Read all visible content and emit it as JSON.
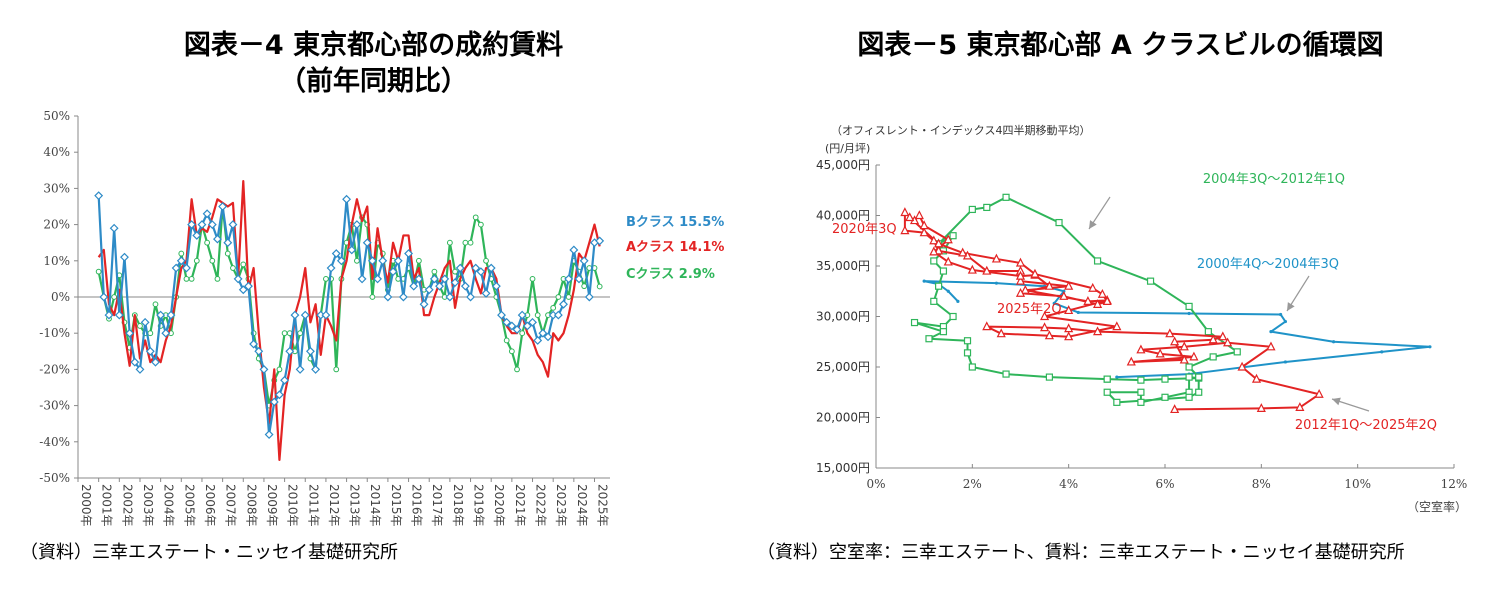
{
  "left": {
    "title1": "図表－4 東京都心部の成約賃料",
    "title2": "（前年同期比）",
    "source": "（資料）三幸エステート・ニッセイ基礎研究所",
    "end_labels": [
      {
        "text": "Bクラス 15.5%",
        "color": "#2e8bc7"
      },
      {
        "text": "Aクラス 14.1%",
        "color": "#e32424"
      },
      {
        "text": "Cクラス 2.9%",
        "color": "#2fb55a"
      }
    ]
  },
  "right": {
    "title": "図表－5 東京都心部 A クラスビルの循環図",
    "subtitle": "（オフィスレント・インデックス4四半期移動平均）",
    "unit": "(円/月坪)",
    "xlabel": "（空室率）",
    "source": "（資料）空室率：三幸エステート、賃料：三幸エステート・ニッセイ基礎研究所",
    "annotations": [
      {
        "text": "2004年3Q～2012年1Q",
        "color": "#2fb55a"
      },
      {
        "text": "2000年4Q～2004年3Q",
        "color": "#1f93c8"
      },
      {
        "text": "2012年1Q～2025年2Q",
        "color": "#e32424"
      },
      {
        "text": "2020年3Q",
        "color": "#e32424"
      },
      {
        "text": "2025年2Q",
        "color": "#e32424"
      }
    ]
  },
  "chart_data": [
    {
      "type": "line",
      "title": "図表－4 東京都心部の成約賃料（前年同期比）",
      "ylim": [
        -50,
        50
      ],
      "yticks": [
        "50%",
        "40%",
        "30%",
        "20%",
        "10%",
        "0%",
        "-10%",
        "-20%",
        "-30%",
        "-40%",
        "-50%"
      ],
      "xticks": [
        "2000年",
        "2001年",
        "2002年",
        "2003年",
        "2004年",
        "2005年",
        "2006年",
        "2007年",
        "2008年",
        "2009年",
        "2010年",
        "2011年",
        "2012年",
        "2013年",
        "2014年",
        "2015年",
        "2016年",
        "2017年",
        "2018年",
        "2019年",
        "2020年",
        "2021年",
        "2022年",
        "2023年",
        "2024年",
        "2025年"
      ],
      "x_start": 2001.0,
      "x_step": 0.25,
      "series": [
        {
          "name": "Aクラス",
          "color": "#e32424",
          "end_value": 14.1,
          "values": [
            11,
            13,
            -2,
            -5,
            2,
            -10,
            -19,
            -5,
            -17,
            -12,
            -18,
            -16,
            -18,
            -12,
            -8,
            0,
            8,
            10,
            27,
            17,
            19,
            18,
            22,
            27,
            26,
            25,
            26,
            5,
            32,
            2,
            8,
            -10,
            -25,
            -35,
            -20,
            -45,
            -27,
            -20,
            -5,
            0,
            8,
            -7,
            -2,
            -16,
            -5,
            -8,
            -12,
            5,
            10,
            20,
            27,
            21,
            25,
            5,
            19,
            10,
            4,
            15,
            10,
            17,
            17,
            5,
            8,
            -5,
            -5,
            0,
            4,
            8,
            10,
            -3,
            5,
            8,
            10,
            5,
            1,
            8,
            8,
            5,
            -5,
            -8,
            -10,
            -10,
            -5,
            -10,
            -12,
            -16,
            -18,
            -22,
            -10,
            -12,
            -10,
            -5,
            2,
            12,
            10,
            15,
            20,
            14
          ]
        },
        {
          "name": "Bクラス",
          "color": "#2e8bc7",
          "end_value": 15.5,
          "values": [
            28,
            0,
            -5,
            19,
            -5,
            11,
            -10,
            -18,
            -20,
            -7,
            -15,
            -18,
            -5,
            -10,
            -5,
            8,
            10,
            8,
            20,
            17,
            20,
            23,
            20,
            16,
            25,
            15,
            20,
            5,
            2,
            3,
            -13,
            -15,
            -20,
            -38,
            -29,
            -27,
            -23,
            -15,
            -5,
            -20,
            -5,
            -15,
            -20,
            -5,
            -5,
            8,
            12,
            10,
            27,
            13,
            20,
            5,
            15,
            10,
            5,
            10,
            0,
            7,
            10,
            0,
            12,
            3,
            5,
            -2,
            2,
            5,
            3,
            5,
            0,
            4,
            8,
            3,
            0,
            8,
            7,
            1,
            8,
            3,
            -5,
            -7,
            -8,
            -9,
            -5,
            -8,
            -7,
            -12,
            -10,
            -11,
            -5,
            -5,
            -2,
            5,
            13,
            5,
            10,
            0,
            15,
            15.5
          ]
        },
        {
          "name": "Cクラス",
          "color": "#2fb55a",
          "end_value": 2.9,
          "values": [
            7,
            0,
            -6,
            0,
            6,
            -7,
            -14,
            -5,
            -8,
            -10,
            -10,
            -2,
            -8,
            -5,
            -10,
            0,
            12,
            5,
            5,
            10,
            20,
            15,
            10,
            5,
            25,
            12,
            8,
            5,
            9,
            5,
            -10,
            -17,
            -20,
            -30,
            -23,
            -20,
            -10,
            -10,
            -15,
            -10,
            -5,
            -17,
            -20,
            -5,
            5,
            5,
            -20,
            5,
            15,
            20,
            10,
            22,
            20,
            0,
            15,
            12,
            2,
            10,
            5,
            5,
            8,
            3,
            10,
            2,
            2,
            7,
            3,
            0,
            15,
            7,
            5,
            15,
            15,
            22,
            20,
            10,
            5,
            0,
            -5,
            -12,
            -15,
            -20,
            -10,
            -5,
            5,
            -5,
            -10,
            -5,
            -3,
            0,
            5,
            0,
            10,
            7,
            3,
            8,
            8,
            2.9
          ]
        }
      ]
    },
    {
      "type": "line",
      "title": "図表－5 東京都心部 A クラスビルの循環図",
      "xlabel": "（空室率）",
      "ylabel": "(円/月坪)",
      "xlim": [
        0,
        12
      ],
      "ylim": [
        15000,
        45000
      ],
      "xticks": [
        "0%",
        "2%",
        "4%",
        "6%",
        "8%",
        "10%",
        "12%"
      ],
      "yticks": [
        "15,000円",
        "20,000円",
        "25,000円",
        "30,000円",
        "35,000円",
        "40,000円",
        "45,000円"
      ],
      "series": [
        {
          "name": "2000年4Q～2004年3Q",
          "color": "#1f93c8",
          "marker": "dot",
          "points": [
            [
              1.7,
              31.5
            ],
            [
              1.5,
              32.5
            ],
            [
              1.3,
              33.2
            ],
            [
              1.0,
              33.5
            ],
            [
              2.5,
              33.3
            ],
            [
              3.5,
              33.0
            ],
            [
              3.9,
              32.5
            ],
            [
              3.7,
              31.3
            ],
            [
              4.2,
              30.4
            ],
            [
              6.5,
              30.3
            ],
            [
              8.4,
              30.2
            ],
            [
              8.5,
              29.5
            ],
            [
              8.2,
              28.5
            ],
            [
              9.5,
              27.5
            ],
            [
              11.5,
              27.0
            ],
            [
              10.5,
              26.5
            ],
            [
              8.5,
              25.5
            ],
            [
              6.5,
              24.3
            ],
            [
              5.0,
              24.0
            ]
          ]
        },
        {
          "name": "2004年3Q～2012年1Q",
          "color": "#2fb55a",
          "marker": "square",
          "points": [
            [
              4.8,
              23.8
            ],
            [
              5.5,
              23.7
            ],
            [
              6.0,
              23.8
            ],
            [
              6.7,
              23.9
            ],
            [
              6.5,
              24.0
            ],
            [
              6.5,
              22.5
            ],
            [
              6.0,
              22.0
            ],
            [
              5.5,
              21.5
            ],
            [
              5.5,
              22.5
            ],
            [
              4.8,
              22.5
            ],
            [
              5.0,
              21.5
            ],
            [
              6.5,
              22.0
            ],
            [
              6.7,
              22.5
            ],
            [
              6.7,
              24.0
            ],
            [
              6.5,
              25.0
            ],
            [
              7.0,
              26.0
            ],
            [
              7.5,
              26.5
            ],
            [
              6.9,
              28.5
            ],
            [
              6.5,
              31.0
            ],
            [
              5.7,
              33.5
            ],
            [
              4.6,
              35.5
            ],
            [
              3.8,
              39.3
            ],
            [
              2.7,
              41.8
            ],
            [
              2.3,
              40.8
            ],
            [
              2.0,
              40.6
            ],
            [
              1.3,
              37.2
            ],
            [
              1.6,
              38.0
            ],
            [
              1.4,
              36.5
            ],
            [
              1.2,
              35.5
            ],
            [
              1.4,
              34.5
            ],
            [
              1.3,
              33.0
            ],
            [
              1.2,
              31.5
            ],
            [
              1.6,
              30.0
            ],
            [
              1.4,
              29.0
            ],
            [
              0.8,
              29.4
            ],
            [
              1.4,
              28.5
            ],
            [
              1.1,
              27.8
            ],
            [
              1.9,
              27.6
            ],
            [
              1.9,
              26.4
            ],
            [
              2.0,
              25.0
            ],
            [
              2.7,
              24.3
            ],
            [
              3.6,
              24.0
            ],
            [
              4.8,
              23.8
            ]
          ]
        },
        {
          "name": "2012年1Q～2025年2Q",
          "color": "#e32424",
          "marker": "triangle",
          "points": [
            [
              6.2,
              20.8
            ],
            [
              8.0,
              20.9
            ],
            [
              8.8,
              21.0
            ],
            [
              9.2,
              22.3
            ],
            [
              7.9,
              23.8
            ],
            [
              7.6,
              25.0
            ],
            [
              8.2,
              27.0
            ],
            [
              7.3,
              27.4
            ],
            [
              6.4,
              27.0
            ],
            [
              5.5,
              26.7
            ],
            [
              5.9,
              26.3
            ],
            [
              6.6,
              26.0
            ],
            [
              5.3,
              25.5
            ],
            [
              6.4,
              25.7
            ],
            [
              6.2,
              27.5
            ],
            [
              7.0,
              27.7
            ],
            [
              7.2,
              28.0
            ],
            [
              6.1,
              28.3
            ],
            [
              4.6,
              28.5
            ],
            [
              4.0,
              28.8
            ],
            [
              3.5,
              28.9
            ],
            [
              2.3,
              29.0
            ],
            [
              2.6,
              28.3
            ],
            [
              3.6,
              28.1
            ],
            [
              4.0,
              28.0
            ],
            [
              5.0,
              29.0
            ],
            [
              3.5,
              30.0
            ],
            [
              4.0,
              30.6
            ],
            [
              4.8,
              31.6
            ],
            [
              4.4,
              31.5
            ],
            [
              3.1,
              32.6
            ],
            [
              4.0,
              33.0
            ],
            [
              3.0,
              33.5
            ],
            [
              3.0,
              34.5
            ],
            [
              2.3,
              34.5
            ],
            [
              1.9,
              36.0
            ],
            [
              1.3,
              36.5
            ],
            [
              1.2,
              37.5
            ],
            [
              1.0,
              38.3
            ],
            [
              0.6,
              38.5
            ],
            [
              0.6,
              40.3
            ],
            [
              0.8,
              39.5
            ],
            [
              0.9,
              40.0
            ],
            [
              1.0,
              39.0
            ],
            [
              1.5,
              37.6
            ],
            [
              1.2,
              36.4
            ],
            [
              1.5,
              35.4
            ],
            [
              2.0,
              34.6
            ],
            [
              3.0,
              34.0
            ],
            [
              3.3,
              34.1
            ],
            [
              3.6,
              33.0
            ],
            [
              3.0,
              32.3
            ],
            [
              3.9,
              32.0
            ],
            [
              4.6,
              31.2
            ],
            [
              4.8,
              31.5
            ],
            [
              4.7,
              32.2
            ],
            [
              4.5,
              32.8
            ],
            [
              3.3,
              34.2
            ],
            [
              3.0,
              35.3
            ],
            [
              2.5,
              35.7
            ],
            [
              1.8,
              36.3
            ],
            [
              1.3,
              37.2
            ],
            [
              0.7,
              39.8
            ]
          ]
        }
      ]
    }
  ]
}
